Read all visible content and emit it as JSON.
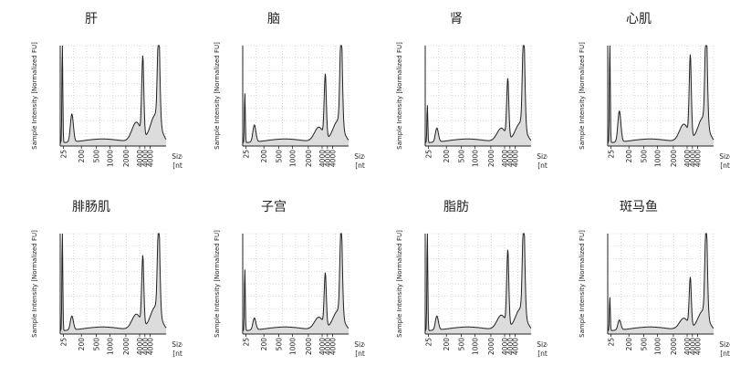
{
  "chart_data": [
    {
      "type": "line",
      "title": "肝",
      "ylabel": "Sample Intensity [Normalized FU]",
      "xlabel": "Size [nt]",
      "ticks": [
        "25",
        "200",
        "500",
        "1000",
        "2000",
        "4000"
      ],
      "peaks": [
        [
          0.02,
          1.0,
          0.006
        ],
        [
          0.11,
          0.28,
          0.02
        ],
        [
          0.78,
          0.78,
          0.014
        ],
        [
          0.93,
          0.93,
          0.016
        ]
      ],
      "humps": [
        [
          0.72,
          0.2,
          0.06
        ],
        [
          0.9,
          0.28,
          0.07
        ]
      ]
    },
    {
      "type": "line",
      "title": "脑",
      "ylabel": "Sample Intensity [Normalized FU]",
      "xlabel": "Size [nt]",
      "ticks": [
        "25",
        "200",
        "500",
        "1000",
        "2000",
        "4000"
      ],
      "peaks": [
        [
          0.02,
          0.5,
          0.006
        ],
        [
          0.11,
          0.17,
          0.02
        ],
        [
          0.78,
          0.62,
          0.014
        ],
        [
          0.93,
          0.97,
          0.016
        ]
      ],
      "humps": [
        [
          0.72,
          0.15,
          0.06
        ],
        [
          0.9,
          0.22,
          0.07
        ]
      ]
    },
    {
      "type": "line",
      "title": "肾",
      "ylabel": "Sample Intensity [Normalized FU]",
      "xlabel": "Size [nt]",
      "ticks": [
        "25",
        "200",
        "500",
        "1000",
        "2000",
        "4000"
      ],
      "peaks": [
        [
          0.02,
          0.38,
          0.006
        ],
        [
          0.11,
          0.14,
          0.02
        ],
        [
          0.78,
          0.58,
          0.014
        ],
        [
          0.93,
          0.97,
          0.016
        ]
      ],
      "humps": [
        [
          0.72,
          0.14,
          0.06
        ],
        [
          0.9,
          0.2,
          0.07
        ]
      ]
    },
    {
      "type": "line",
      "title": "心肌",
      "ylabel": "Sample Intensity [Normalized FU]",
      "xlabel": "Size [nt]",
      "ticks": [
        "25",
        "200",
        "500",
        "1000",
        "2000",
        "4000"
      ],
      "peaks": [
        [
          0.02,
          1.0,
          0.006
        ],
        [
          0.11,
          0.31,
          0.02
        ],
        [
          0.78,
          0.8,
          0.014
        ],
        [
          0.93,
          0.97,
          0.016
        ]
      ],
      "humps": [
        [
          0.72,
          0.18,
          0.06
        ],
        [
          0.9,
          0.25,
          0.07
        ]
      ]
    },
    {
      "type": "line",
      "title": "腓肠肌",
      "ylabel": "Sample Intensity [Normalized FU]",
      "xlabel": "Size [nt]",
      "ticks": [
        "25",
        "200",
        "500",
        "1000",
        "2000",
        "4000"
      ],
      "peaks": [
        [
          0.02,
          1.0,
          0.006
        ],
        [
          0.11,
          0.14,
          0.02
        ],
        [
          0.78,
          0.68,
          0.014
        ],
        [
          0.93,
          0.93,
          0.016
        ]
      ],
      "humps": [
        [
          0.72,
          0.16,
          0.06
        ],
        [
          0.9,
          0.24,
          0.07
        ]
      ]
    },
    {
      "type": "line",
      "title": "子宫",
      "ylabel": "Sample Intensity [Normalized FU]",
      "xlabel": "Size [nt]",
      "ticks": [
        "25",
        "200",
        "500",
        "1000",
        "2000",
        "4000"
      ],
      "peaks": [
        [
          0.02,
          0.62,
          0.006
        ],
        [
          0.11,
          0.12,
          0.02
        ],
        [
          0.78,
          0.52,
          0.014
        ],
        [
          0.93,
          0.92,
          0.016
        ]
      ],
      "humps": [
        [
          0.72,
          0.13,
          0.06
        ],
        [
          0.9,
          0.2,
          0.07
        ]
      ]
    },
    {
      "type": "line",
      "title": "脂肪",
      "ylabel": "Sample Intensity [Normalized FU]",
      "xlabel": "Size [nt]",
      "ticks": [
        "25",
        "200",
        "500",
        "1000",
        "2000",
        "4000"
      ],
      "peaks": [
        [
          0.02,
          1.0,
          0.006
        ],
        [
          0.11,
          0.14,
          0.02
        ],
        [
          0.78,
          0.74,
          0.014
        ],
        [
          0.93,
          0.97,
          0.016
        ]
      ],
      "humps": [
        [
          0.72,
          0.15,
          0.06
        ],
        [
          0.9,
          0.22,
          0.07
        ]
      ]
    },
    {
      "type": "line",
      "title": "斑马鱼",
      "ylabel": "Sample Intensity [Normalized FU]",
      "xlabel": "Size [nt]",
      "ticks": [
        "25",
        "200",
        "500",
        "1000",
        "2000",
        "4000"
      ],
      "peaks": [
        [
          0.02,
          0.34,
          0.006
        ],
        [
          0.11,
          0.1,
          0.02
        ],
        [
          0.78,
          0.48,
          0.014
        ],
        [
          0.93,
          0.95,
          0.016
        ]
      ],
      "humps": [
        [
          0.72,
          0.12,
          0.06
        ],
        [
          0.9,
          0.2,
          0.07
        ]
      ]
    }
  ]
}
